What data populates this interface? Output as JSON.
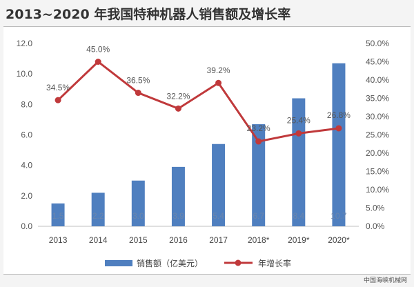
{
  "chart_data": {
    "type": "bar",
    "title": "2013~2020 年我国特种机器人销售额及增长率",
    "categories": [
      "2013",
      "2014",
      "2015",
      "2016",
      "2017",
      "2018*",
      "2019*",
      "2020*"
    ],
    "series": [
      {
        "name": "销售额（亿美元）",
        "type": "bar",
        "axis": "left",
        "values": [
          1.5,
          2.2,
          3.0,
          3.9,
          5.4,
          6.7,
          8.4,
          10.7
        ],
        "labels": [
          "1.5",
          "2.2",
          "3.0",
          "3.9",
          "5.4",
          "6.7",
          "8.4",
          "10.7"
        ],
        "color": "#4f7fbf"
      },
      {
        "name": "年增长率",
        "type": "line",
        "axis": "right",
        "values": [
          34.5,
          45.0,
          36.5,
          32.2,
          39.2,
          23.2,
          25.4,
          26.8
        ],
        "labels": [
          "34.5%",
          "45.0%",
          "36.5%",
          "32.2%",
          "39.2%",
          "23.2%",
          "25.4%",
          "26.8%"
        ],
        "color": "#c0393b"
      }
    ],
    "y_left": {
      "min": 0,
      "max": 12,
      "ticks": [
        "0.0",
        "2.0",
        "4.0",
        "6.0",
        "8.0",
        "10.0",
        "12.0"
      ]
    },
    "y_right": {
      "min": 0,
      "max": 50,
      "ticks": [
        "0.0%",
        "5.0%",
        "10.0%",
        "15.0%",
        "20.0%",
        "25.0%",
        "30.0%",
        "35.0%",
        "40.0%",
        "45.0%",
        "50.0%"
      ]
    },
    "grid": false,
    "legend": "bottom"
  },
  "source_text": "中国海峡机械网"
}
